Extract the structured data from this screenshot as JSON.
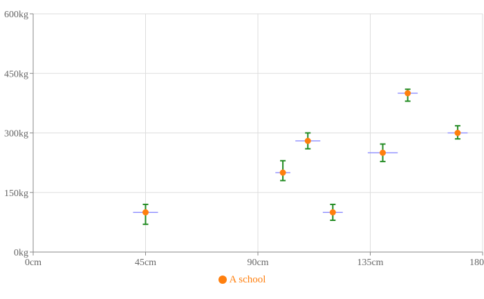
{
  "chart_data": {
    "type": "scatter",
    "x_ticks": [
      "0cm",
      "45cm",
      "90cm",
      "135cm",
      "180cm"
    ],
    "y_ticks": [
      "0kg",
      "150kg",
      "300kg",
      "450kg",
      "600kg"
    ],
    "xlim": [
      0,
      180
    ],
    "ylim": [
      0,
      600
    ],
    "grid": true,
    "legend_position": "bottom",
    "series": [
      {
        "name": "A school",
        "color": "#ff7f0e",
        "points": [
          {
            "x": 45,
            "y": 100,
            "x_err": 5,
            "y_low": 70,
            "y_high": 120
          },
          {
            "x": 100,
            "y": 200,
            "x_err": 3,
            "y_low": 180,
            "y_high": 230
          },
          {
            "x": 110,
            "y": 280,
            "x_err": 5,
            "y_low": 260,
            "y_high": 300
          },
          {
            "x": 120,
            "y": 100,
            "x_err": 4,
            "y_low": 80,
            "y_high": 120
          },
          {
            "x": 140,
            "y": 250,
            "x_err": 6,
            "y_low": 228,
            "y_high": 272
          },
          {
            "x": 150,
            "y": 400,
            "x_err": 4,
            "y_low": 380,
            "y_high": 410
          },
          {
            "x": 170,
            "y": 300,
            "x_err": 4,
            "y_low": 285,
            "y_high": 318
          }
        ]
      }
    ],
    "colors": {
      "x_error_bar": "#8080ff",
      "y_error_bar": "#228b22",
      "grid": "#dddddd",
      "axis": "#888888"
    }
  }
}
